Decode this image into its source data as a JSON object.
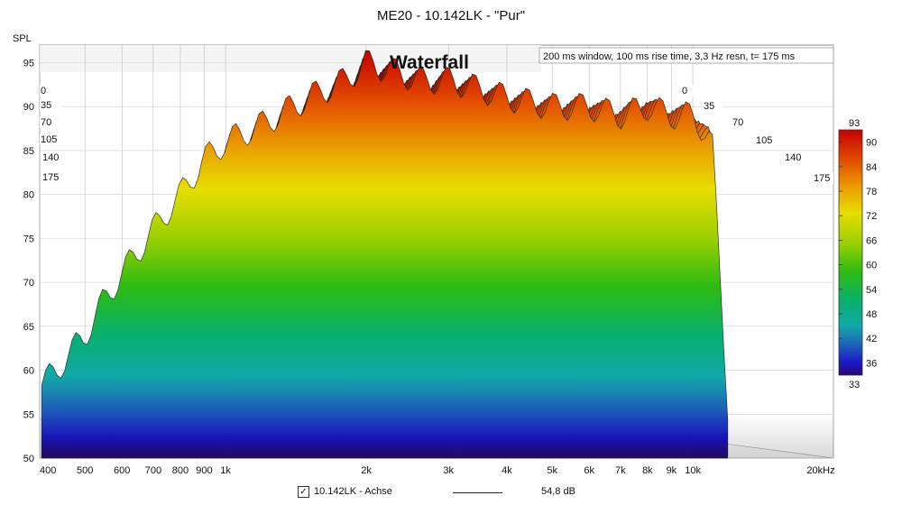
{
  "chart_data": {
    "type": "waterfall",
    "title": "ME20 - 10.142LK - \"Pur\"",
    "subtitle": "Waterfall",
    "info": "200 ms window, 100 ms rise time,  3,3 Hz resn, t= 175 ms",
    "ylabel": "SPL",
    "y_ticks": [
      "95",
      "90",
      "85",
      "80",
      "75",
      "70",
      "65",
      "60",
      "55",
      "50"
    ],
    "ylim": [
      50,
      97
    ],
    "x_scale": "log",
    "xlim": [
      400,
      20000
    ],
    "x_tick_values": [
      400,
      500,
      600,
      700,
      800,
      900,
      1000,
      2000,
      3000,
      4000,
      5000,
      6000,
      7000,
      8000,
      9000,
      10000,
      20000
    ],
    "x_tick_labels": [
      "400",
      "500",
      "600",
      "700",
      "800",
      "900",
      "1k",
      "2k",
      "3k",
      "4k",
      "5k",
      "6k",
      "7k",
      "8k",
      "9k",
      "10k",
      "20kHz"
    ],
    "time_ms_labels": [
      "0",
      "35",
      "70",
      "105",
      "140",
      "175"
    ],
    "colorbar": {
      "max_label": "93",
      "min_label": "33",
      "tick_labels": [
        "90",
        "84",
        "78",
        "72",
        "66",
        "60",
        "54",
        "48",
        "42",
        "36"
      ],
      "range": [
        33,
        93
      ]
    },
    "envelope_front": {
      "freq": [
        400,
        450,
        500,
        550,
        600,
        700,
        800,
        900,
        1000,
        1200,
        1500,
        1800,
        2000,
        2300,
        2600,
        3000,
        3500,
        4000,
        5000,
        6000,
        7000,
        8000,
        9000,
        10000,
        11000,
        12000
      ],
      "spl": [
        58,
        61,
        64,
        68,
        71,
        76,
        80,
        84,
        86,
        88,
        91,
        93,
        95,
        94,
        93,
        93,
        92,
        91,
        90,
        90,
        89,
        90,
        89,
        89,
        86,
        52
      ]
    },
    "legend": {
      "checked": "✓",
      "label": "10.142LK - Achse",
      "value": "54,8 dB"
    }
  }
}
